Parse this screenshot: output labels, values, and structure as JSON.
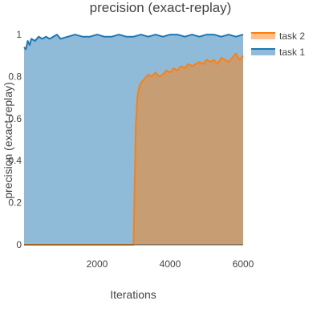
{
  "chart_data": {
    "type": "area",
    "title": "precision (exact-replay)",
    "xlabel": "Iterations",
    "ylabel": "precision (exact-replay)",
    "xlim": [
      0,
      6000
    ],
    "ylim": [
      0,
      1.05
    ],
    "x_ticks": [
      2000,
      4000,
      6000
    ],
    "y_ticks": [
      0,
      0.2,
      0.4,
      0.6,
      0.8,
      1
    ],
    "grid": false,
    "legend_position": "top-right",
    "series": [
      {
        "name": "task 2",
        "color": "#ff7f0e",
        "fill_color": "#ff7f0e",
        "x": [
          0,
          100,
          500,
          1000,
          1500,
          2000,
          2500,
          2900,
          2990,
          3000,
          3030,
          3060,
          3100,
          3150,
          3200,
          3300,
          3400,
          3500,
          3600,
          3700,
          3800,
          3900,
          4000,
          4100,
          4200,
          4300,
          4400,
          4500,
          4600,
          4700,
          4800,
          4900,
          5000,
          5100,
          5200,
          5300,
          5400,
          5500,
          5600,
          5700,
          5800,
          5900,
          6000
        ],
        "values": [
          0,
          0,
          0,
          0,
          0,
          0,
          0,
          0,
          0,
          0.02,
          0.3,
          0.57,
          0.7,
          0.75,
          0.77,
          0.79,
          0.81,
          0.8,
          0.82,
          0.8,
          0.81,
          0.83,
          0.82,
          0.84,
          0.83,
          0.85,
          0.84,
          0.86,
          0.85,
          0.86,
          0.87,
          0.86,
          0.88,
          0.87,
          0.88,
          0.86,
          0.89,
          0.88,
          0.87,
          0.89,
          0.91,
          0.88,
          0.9
        ]
      },
      {
        "name": "task 1",
        "color": "#1f77b4",
        "fill_color": "#1f77b4",
        "x": [
          0,
          50,
          100,
          150,
          200,
          300,
          400,
          500,
          600,
          700,
          800,
          900,
          1000,
          1200,
          1400,
          1600,
          1800,
          2000,
          2200,
          2400,
          2600,
          2800,
          3000,
          3200,
          3400,
          3600,
          3800,
          4000,
          4200,
          4400,
          4600,
          4800,
          5000,
          5200,
          5400,
          5600,
          5800,
          6000
        ],
        "values": [
          0.94,
          0.93,
          0.97,
          0.95,
          0.98,
          0.97,
          0.99,
          0.98,
          0.99,
          0.98,
          0.99,
          1.0,
          0.98,
          0.99,
          1.0,
          0.99,
          0.99,
          1.0,
          0.99,
          0.99,
          1.0,
          0.99,
          0.99,
          1.0,
          0.99,
          1.0,
          0.99,
          1.0,
          1.0,
          0.99,
          1.0,
          0.99,
          1.0,
          1.0,
          0.99,
          1.0,
          0.99,
          1.0
        ]
      }
    ]
  }
}
